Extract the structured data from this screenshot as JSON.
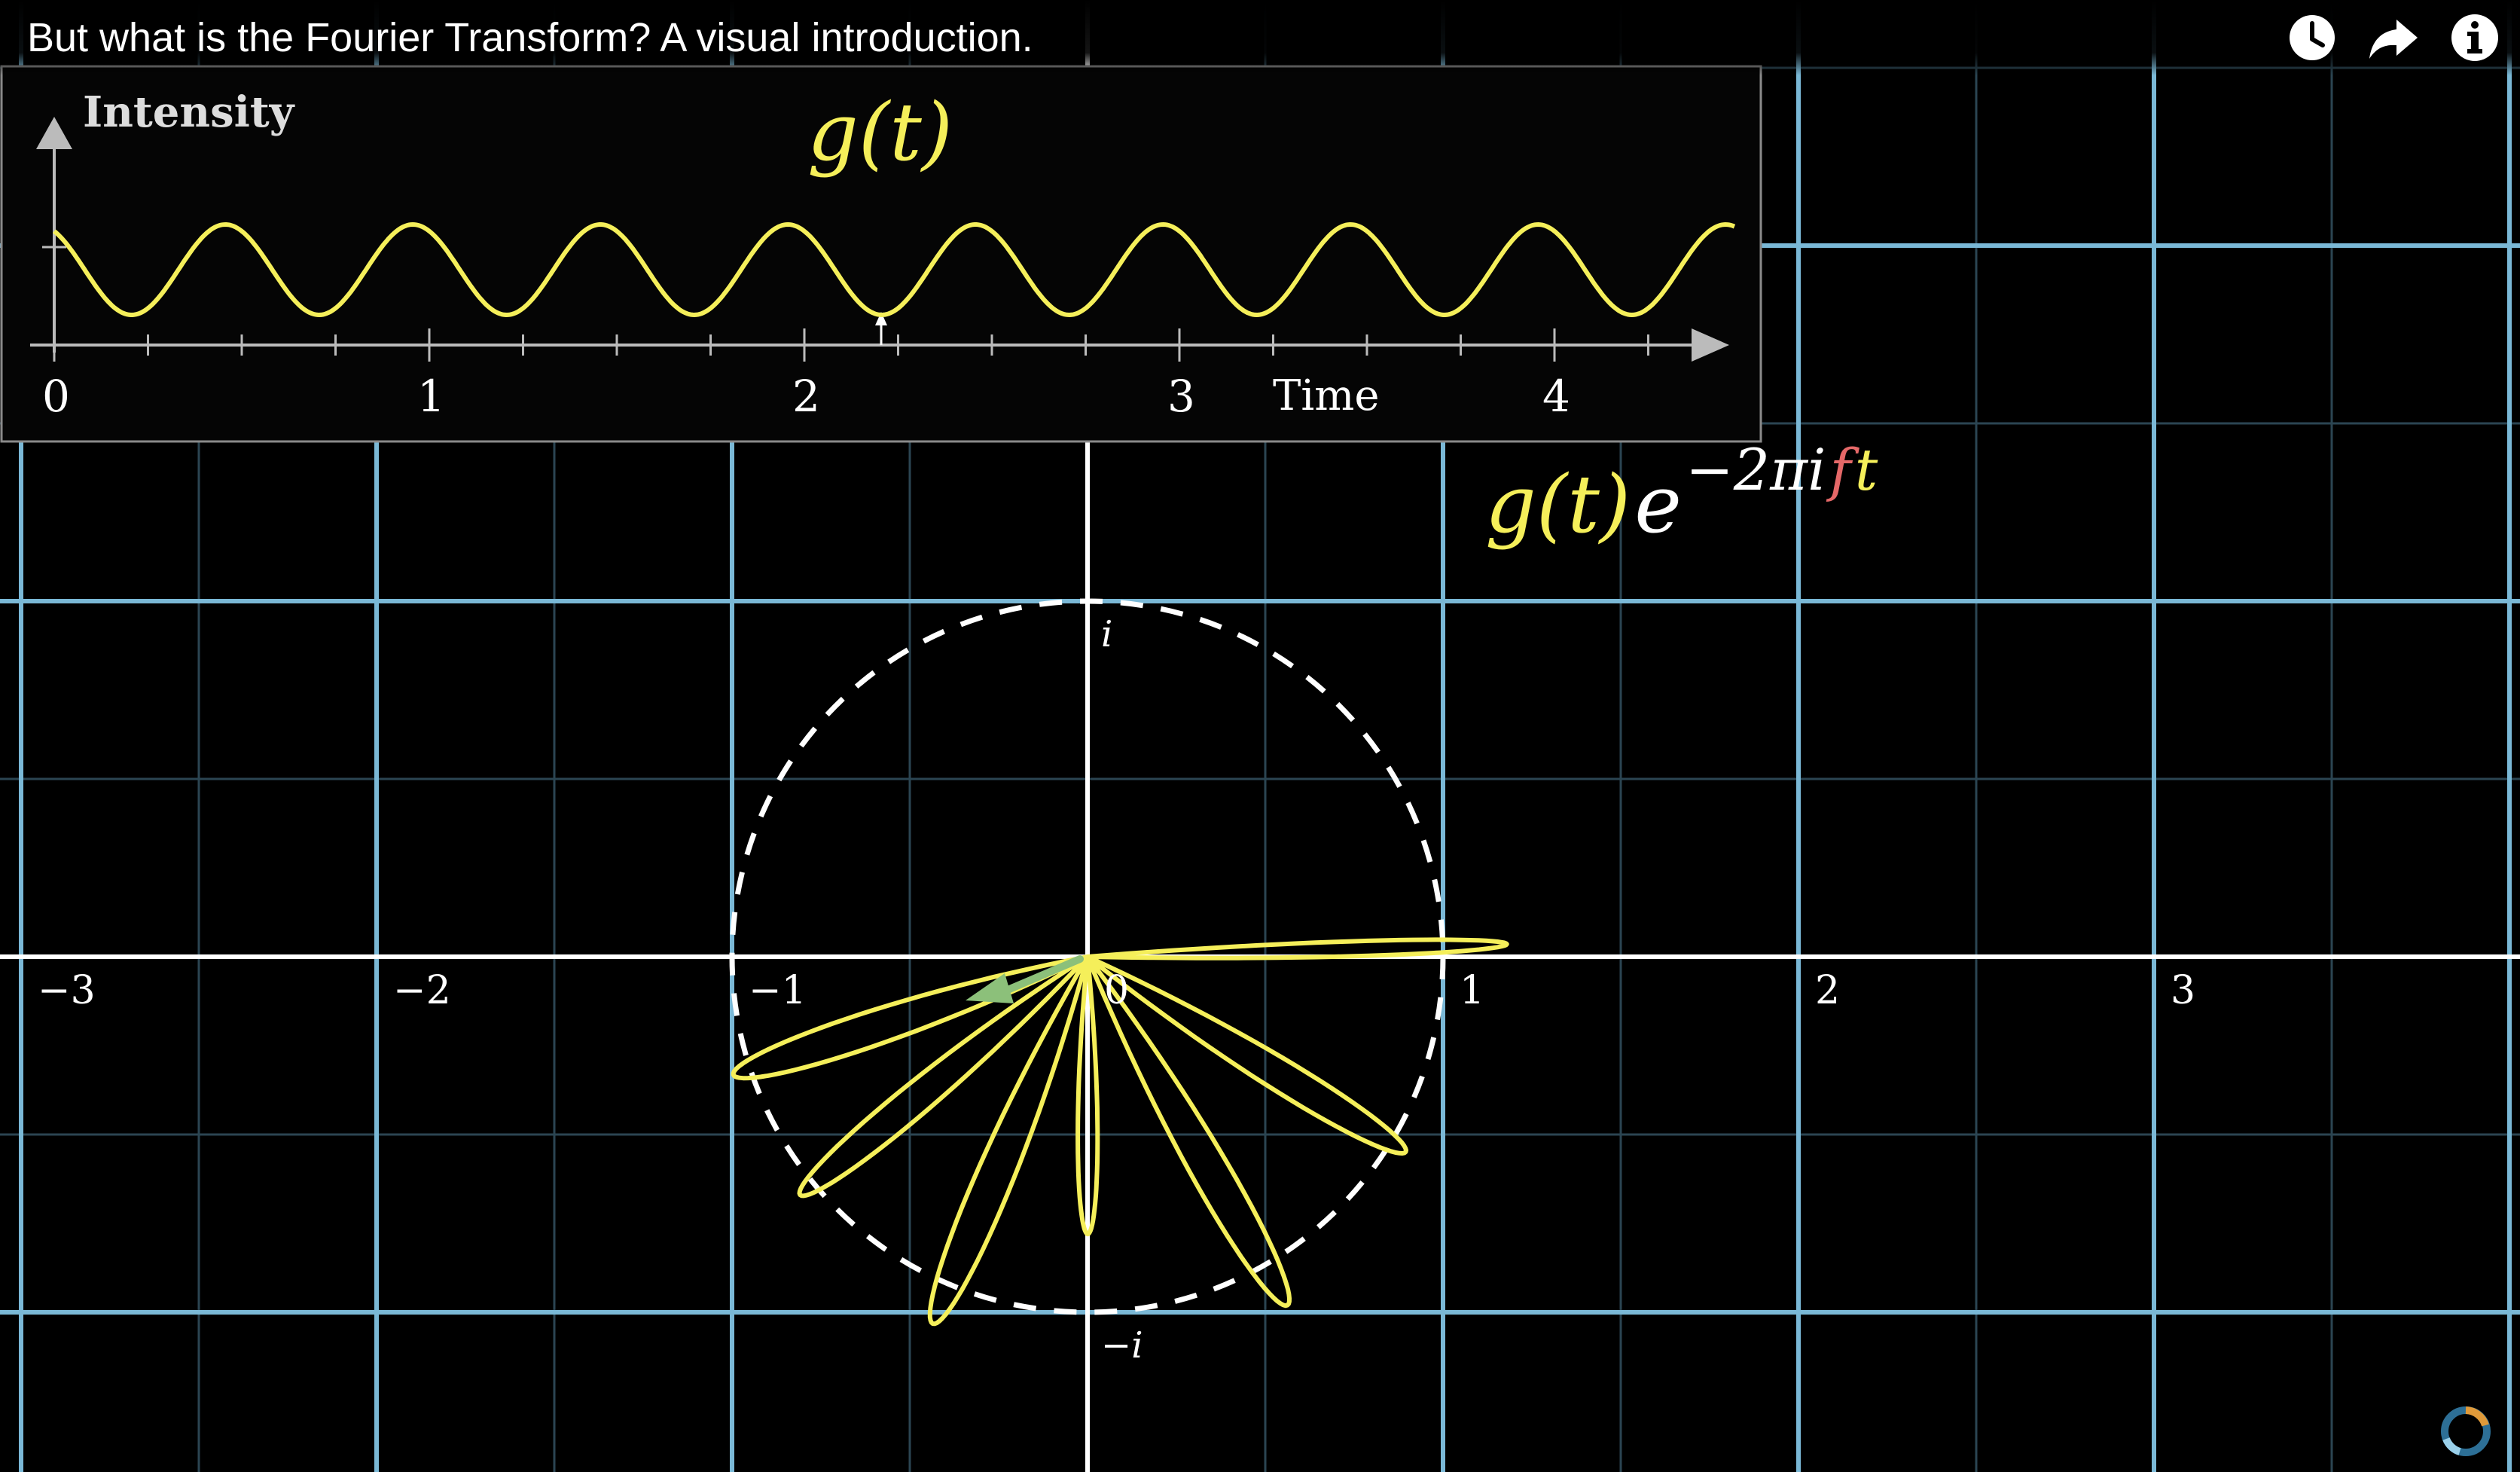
{
  "player": {
    "title": "But what is the Fourier Transform? A visual introduction.",
    "controls": [
      {
        "id": "watch-later",
        "icon": "clock-icon"
      },
      {
        "id": "share",
        "icon": "share-arrow-icon"
      },
      {
        "id": "info",
        "icon": "info-icon"
      }
    ],
    "loading_icon": "spinner-icon"
  },
  "colors": {
    "background": "#000000",
    "grid_major": "#7ab8d6",
    "grid_minor": "#2b4552",
    "axes": "#ffffff",
    "curve": "#f5ef5a",
    "vector": "#8cc07a",
    "freq_red": "#e56868",
    "inset_bg": "#050505",
    "inset_border": "#8a8a8a",
    "inset_axis": "#bbbbbb"
  },
  "inset": {
    "function_label": "g(t)",
    "y_axis_label": "Intensity",
    "x_axis_label": "Time",
    "x_ticks": [
      "0",
      "1",
      "2",
      "3",
      "4"
    ]
  },
  "formula": {
    "base": "g(t)",
    "e": "e",
    "exp_prefix": "−2πi",
    "exp_f": "f",
    "exp_t": "t"
  },
  "plane": {
    "x_ticks": [
      "−3",
      "−2",
      "−1",
      "0",
      "1",
      "2",
      "3"
    ],
    "imag_up": "i",
    "imag_down": "−i"
  }
}
